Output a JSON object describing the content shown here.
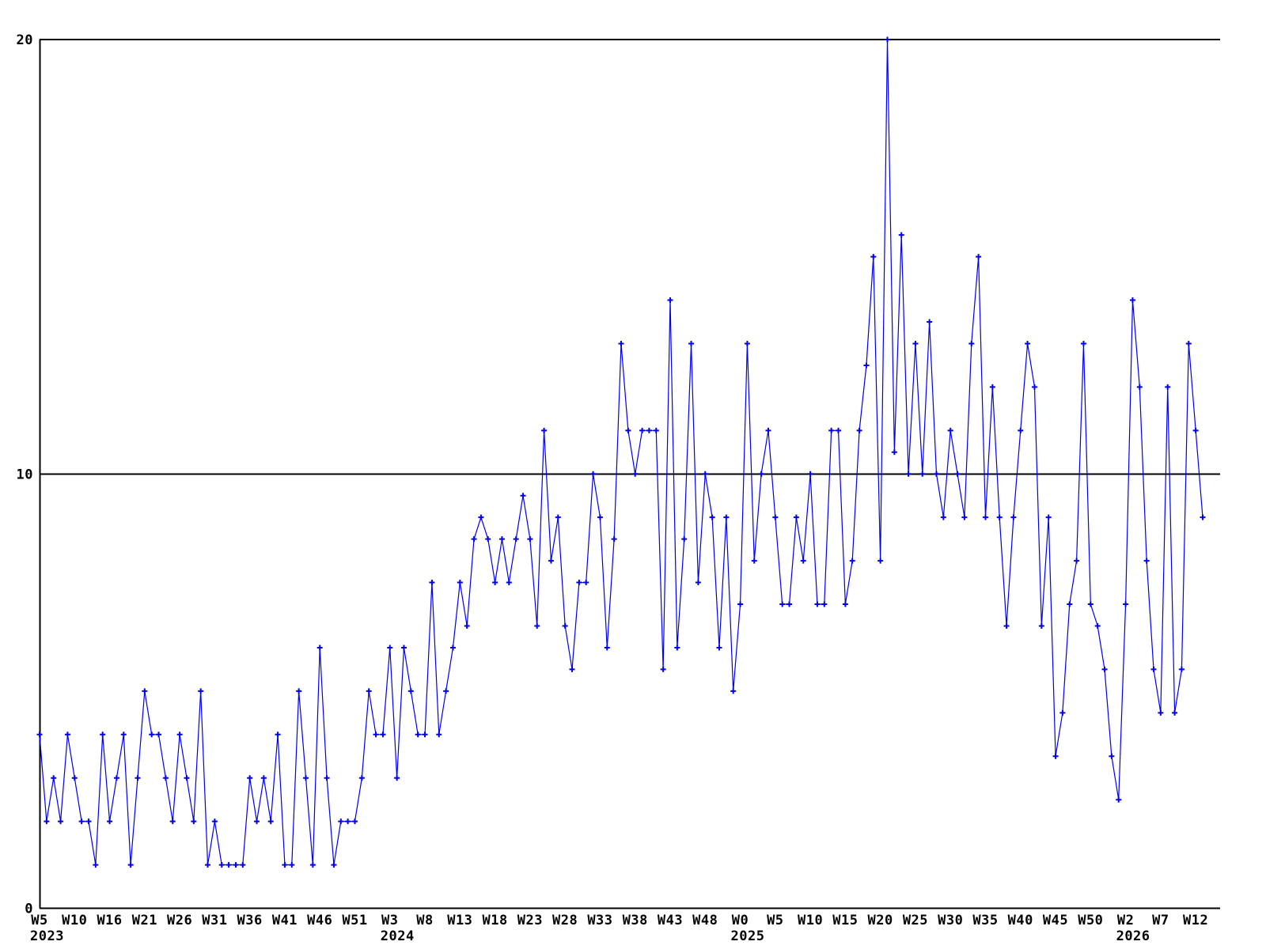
{
  "chart_data": {
    "type": "line",
    "title": "",
    "legend": "none",
    "grid": "horizontal line at y=10 only",
    "ylim": [
      0,
      20
    ],
    "y_ticks": [
      "0",
      "10",
      "20"
    ],
    "y_tick_values": [
      0,
      10,
      20
    ],
    "x_tick_labels": [
      "W5",
      "W10",
      "W16",
      "W21",
      "W26",
      "W31",
      "W36",
      "W41",
      "W46",
      "W51",
      "W3",
      "W8",
      "W13",
      "W18",
      "W23",
      "W28",
      "W33",
      "W38",
      "W43",
      "W48",
      "W0",
      "W5",
      "W10",
      "W15",
      "W20",
      "W25",
      "W30",
      "W35",
      "W40",
      "W45",
      "W50",
      "W2",
      "W7",
      "W12"
    ],
    "x_tick_point_step": 5,
    "year_labels": [
      {
        "label": "2023",
        "tick_index": 0
      },
      {
        "label": "2024",
        "tick_index": 10
      },
      {
        "label": "2025",
        "tick_index": 20
      },
      {
        "label": "2026",
        "tick_index": 31
      }
    ],
    "values": [
      4,
      2,
      3,
      2,
      4,
      3,
      2,
      2,
      1,
      4,
      2,
      3,
      4,
      1,
      3,
      5,
      4,
      4,
      3,
      2,
      4,
      3,
      2,
      5,
      1,
      2,
      1,
      1,
      1,
      1,
      3,
      2,
      3,
      2,
      4,
      1,
      1,
      5,
      3,
      1,
      6,
      3,
      1,
      2,
      2,
      2,
      3,
      5,
      4,
      4,
      6,
      3,
      6,
      5,
      4,
      4,
      7.5,
      4,
      5,
      6,
      7.5,
      6.5,
      8.5,
      9,
      8.5,
      7.5,
      8.5,
      7.5,
      8.5,
      9.5,
      8.5,
      6.5,
      11,
      8,
      9,
      6.5,
      5.5,
      7.5,
      7.5,
      10,
      9,
      6,
      8.5,
      13,
      11,
      10,
      11,
      11,
      11,
      5.5,
      14,
      6,
      8.5,
      13,
      7.5,
      10,
      9,
      6,
      9,
      5,
      7,
      13,
      8,
      10,
      11,
      9,
      7,
      7,
      9,
      8,
      10,
      7,
      7,
      11,
      11,
      7,
      8,
      11,
      12.5,
      15,
      8,
      20,
      10.5,
      15.5,
      10,
      13,
      10,
      13.5,
      10,
      9,
      11,
      10,
      9,
      13,
      15,
      9,
      12,
      9,
      6.5,
      9,
      11,
      13,
      12,
      6.5,
      9,
      3.5,
      4.5,
      7,
      8,
      13,
      7,
      6.5,
      5.5,
      3.5,
      2.5,
      7,
      14,
      12,
      8,
      5.5,
      4.5,
      12,
      4.5,
      5.5,
      13,
      11,
      9
    ],
    "series_color": "#0000ee",
    "axis_color": "#000000",
    "background_color": "#ffffff",
    "marker": "plus"
  }
}
